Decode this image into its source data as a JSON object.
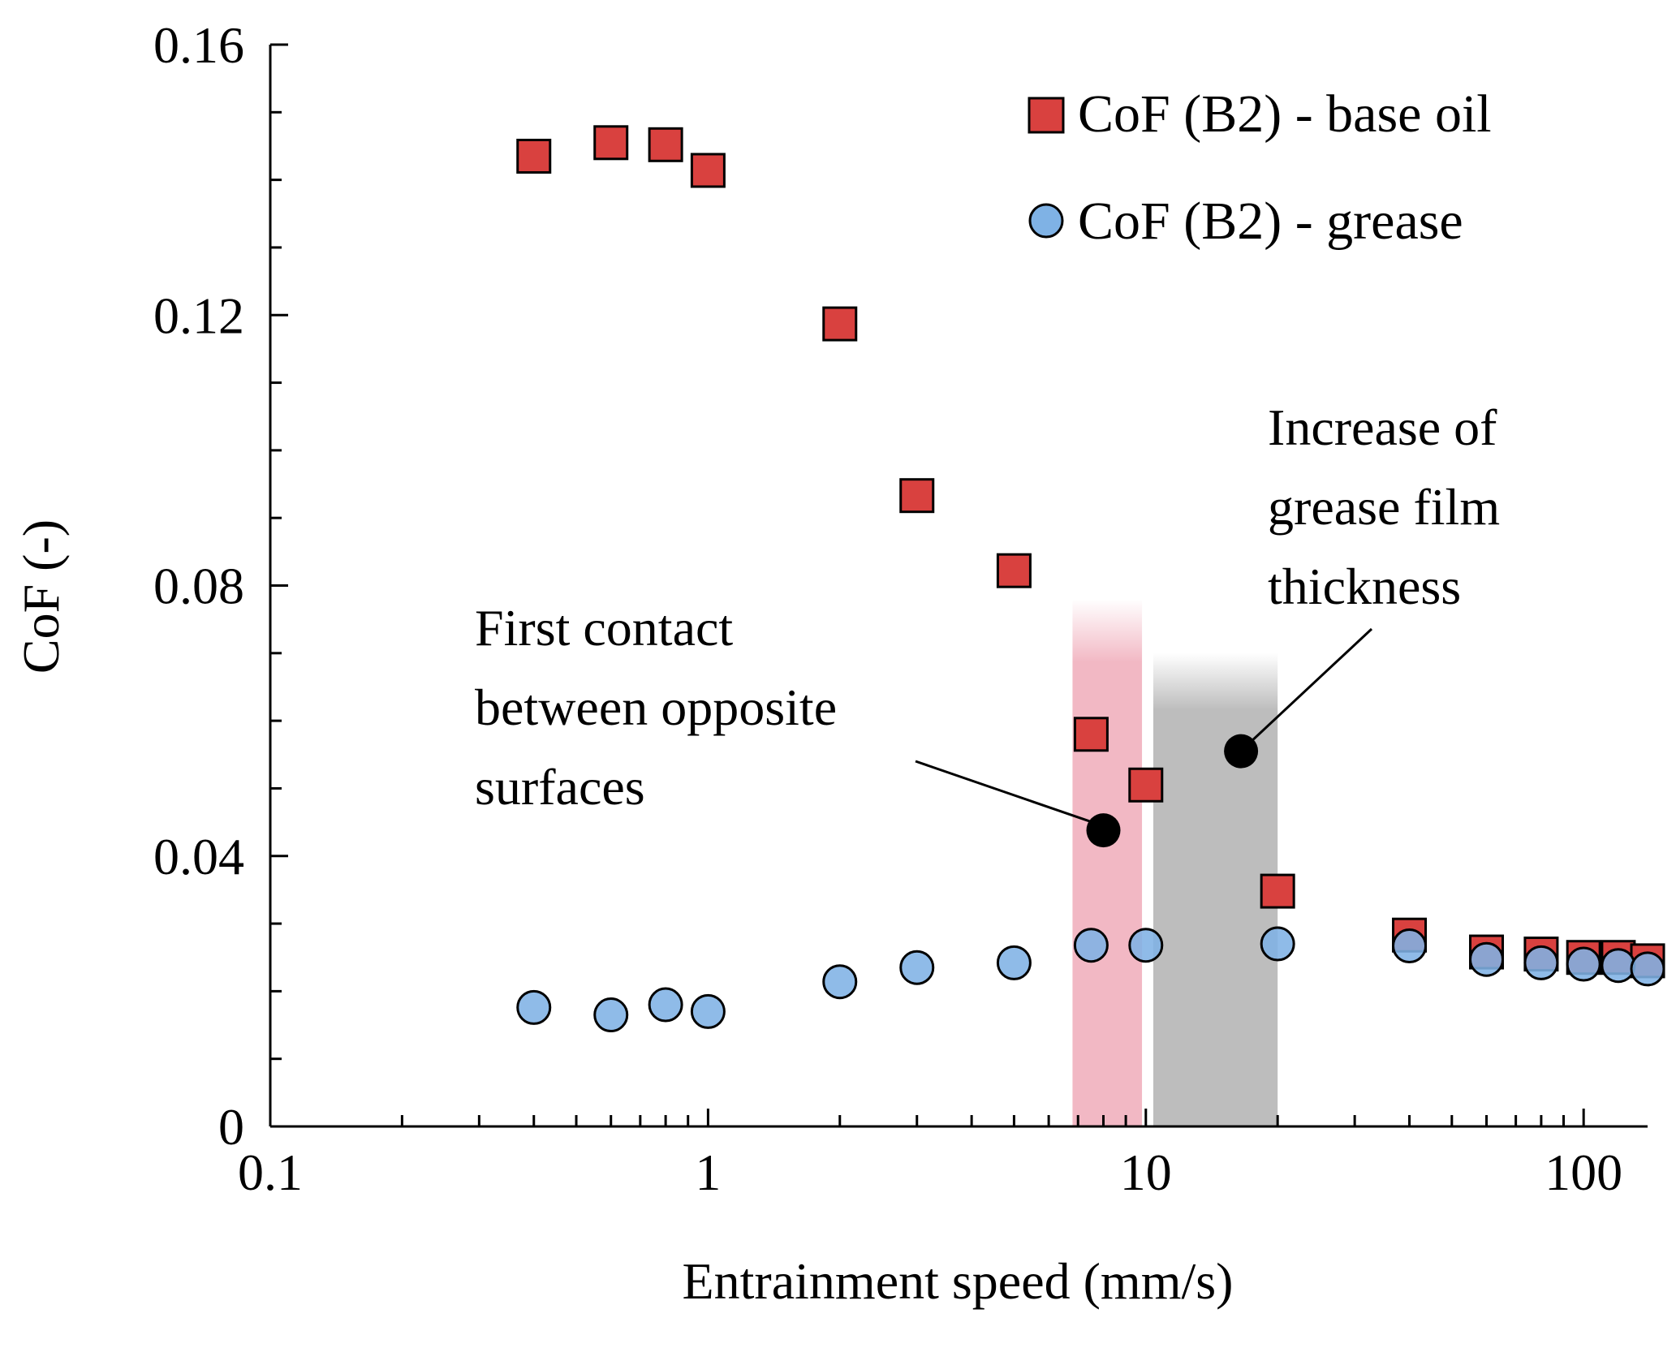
{
  "chart_data": {
    "type": "scatter",
    "title": "",
    "xlabel": "Entrainment speed (mm/s)",
    "ylabel": "CoF (-)",
    "xscale": "log",
    "xlim": [
      0.1,
      140
    ],
    "ylim": [
      0,
      0.16
    ],
    "xticks": [
      {
        "value": 0.1,
        "label": "0.1"
      },
      {
        "value": 1,
        "label": "1"
      },
      {
        "value": 10,
        "label": "10"
      },
      {
        "value": 100,
        "label": "100"
      }
    ],
    "yticks": [
      {
        "value": 0,
        "label": "0"
      },
      {
        "value": 0.04,
        "label": "0.04"
      },
      {
        "value": 0.08,
        "label": "0.08"
      },
      {
        "value": 0.12,
        "label": "0.12"
      },
      {
        "value": 0.16,
        "label": "0.16"
      }
    ],
    "legend_position": "top-right",
    "series": [
      {
        "name": "CoF (B2) - base oil",
        "marker": "square",
        "color": "#d9413f",
        "x": [
          0.4,
          0.6,
          0.8,
          1.0,
          2,
          3,
          5,
          7.5,
          10,
          20,
          40,
          60,
          80,
          100,
          120,
          140
        ],
        "y": [
          0.1435,
          0.1455,
          0.1452,
          0.1414,
          0.1187,
          0.0933,
          0.0822,
          0.058,
          0.0505,
          0.0348,
          0.0283,
          0.0258,
          0.0255,
          0.025,
          0.025,
          0.0245
        ]
      },
      {
        "name": "CoF (B2) - grease",
        "marker": "circle",
        "color": "#7fb2e5",
        "x": [
          0.4,
          0.6,
          0.8,
          1.0,
          2,
          3,
          5,
          7.5,
          10,
          20,
          40,
          60,
          80,
          100,
          120,
          140
        ],
        "y": [
          0.0176,
          0.0165,
          0.018,
          0.017,
          0.0214,
          0.0235,
          0.0242,
          0.0268,
          0.0268,
          0.027,
          0.0267,
          0.0247,
          0.0242,
          0.024,
          0.0238,
          0.0233
        ]
      }
    ],
    "shaded_regions": [
      {
        "name": "first-contact-region",
        "x_start": 6.8,
        "x_end": 9.8,
        "color": "#f2b8c4"
      },
      {
        "name": "film-thickness-region",
        "x_start": 10.4,
        "x_end": 20,
        "color": "#bdbdbd"
      }
    ],
    "annotations": [
      {
        "name": "first-contact",
        "lines": [
          "First contact",
          "between opposite",
          "surfaces"
        ],
        "point": {
          "x": 8,
          "y": 0.0438
        }
      },
      {
        "name": "film-increase",
        "lines": [
          "Increase of",
          "grease film",
          "thickness"
        ],
        "point": {
          "x": 16.5,
          "y": 0.0555
        }
      }
    ]
  }
}
